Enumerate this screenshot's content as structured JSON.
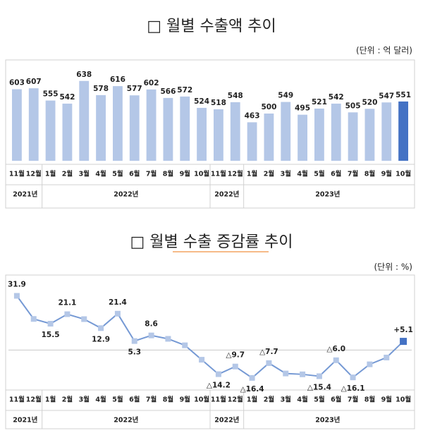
{
  "chart_data": [
    {
      "type": "bar",
      "title": "□ 월별 수출액 추이",
      "unit_label": "(단위 : 억 달러)",
      "categories": [
        "11월",
        "12월",
        "1월",
        "2월",
        "3월",
        "4월",
        "5월",
        "6월",
        "7월",
        "8월",
        "9월",
        "10월",
        "11월",
        "12월",
        "1월",
        "2월",
        "3월",
        "4월",
        "5월",
        "6월",
        "7월",
        "8월",
        "9월",
        "10월"
      ],
      "year_labels": [
        "2021년",
        null,
        "2022년",
        null,
        null,
        null,
        null,
        null,
        null,
        null,
        null,
        null,
        "2022년",
        null,
        "2023년",
        null,
        null,
        null,
        null,
        null,
        null,
        null,
        null,
        null
      ],
      "values": [
        603,
        607,
        555,
        542,
        638,
        578,
        616,
        577,
        602,
        566,
        572,
        524,
        518,
        548,
        463,
        500,
        549,
        495,
        521,
        542,
        505,
        520,
        547,
        551
      ],
      "colors": [
        "#b4c7e7",
        "#b4c7e7",
        "#b4c7e7",
        "#b4c7e7",
        "#b4c7e7",
        "#b4c7e7",
        "#b4c7e7",
        "#b4c7e7",
        "#b4c7e7",
        "#b4c7e7",
        "#b4c7e7",
        "#b4c7e7",
        "#b4c7e7",
        "#b4c7e7",
        "#b4c7e7",
        "#b4c7e7",
        "#b4c7e7",
        "#b4c7e7",
        "#b4c7e7",
        "#b4c7e7",
        "#b4c7e7",
        "#b4c7e7",
        "#b4c7e7",
        "#4472c4"
      ],
      "ylim": [
        300,
        700
      ]
    },
    {
      "type": "line",
      "title": "□ 월별 수출 증감률 추이",
      "unit_label": "(단위 : %)",
      "categories": [
        "11월",
        "12월",
        "1월",
        "2월",
        "3월",
        "4월",
        "5월",
        "6월",
        "7월",
        "8월",
        "9월",
        "10월",
        "11월",
        "12월",
        "1월",
        "2월",
        "3월",
        "4월",
        "5월",
        "6월",
        "7월",
        "8월",
        "9월",
        "10월"
      ],
      "year_labels": [
        "2021년",
        null,
        "2022년",
        null,
        null,
        null,
        null,
        null,
        null,
        null,
        null,
        null,
        "2022년",
        null,
        "2023년",
        null,
        null,
        null,
        null,
        null,
        null,
        null,
        null,
        null
      ],
      "values": [
        31.9,
        18.3,
        15.5,
        21.1,
        18.2,
        12.9,
        21.4,
        5.3,
        8.6,
        6.6,
        2.8,
        -5.7,
        -14.2,
        -9.7,
        -16.4,
        -7.7,
        -13.8,
        -14.3,
        -15.4,
        -6.0,
        -16.1,
        -8.4,
        -4.4,
        5.1
      ],
      "value_labels": [
        "31.9",
        null,
        "15.5",
        "21.1",
        null,
        "12.9",
        "21.4",
        "5.3",
        "8.6",
        null,
        null,
        null,
        "△14.2",
        "△9.7",
        "△16.4",
        "△7.7",
        null,
        null,
        "△15.4",
        "△6.0",
        "△16.1",
        null,
        null,
        "+5.1"
      ],
      "color": "#7599d4",
      "marker_colors": [
        "#b4c7e7",
        "#b4c7e7",
        "#b4c7e7",
        "#b4c7e7",
        "#b4c7e7",
        "#b4c7e7",
        "#b4c7e7",
        "#b4c7e7",
        "#b4c7e7",
        "#b4c7e7",
        "#b4c7e7",
        "#b4c7e7",
        "#b4c7e7",
        "#b4c7e7",
        "#b4c7e7",
        "#b4c7e7",
        "#b4c7e7",
        "#b4c7e7",
        "#b4c7e7",
        "#b4c7e7",
        "#b4c7e7",
        "#b4c7e7",
        "#b4c7e7",
        "#4472c4"
      ],
      "ylim": [
        -26,
        40
      ]
    }
  ]
}
